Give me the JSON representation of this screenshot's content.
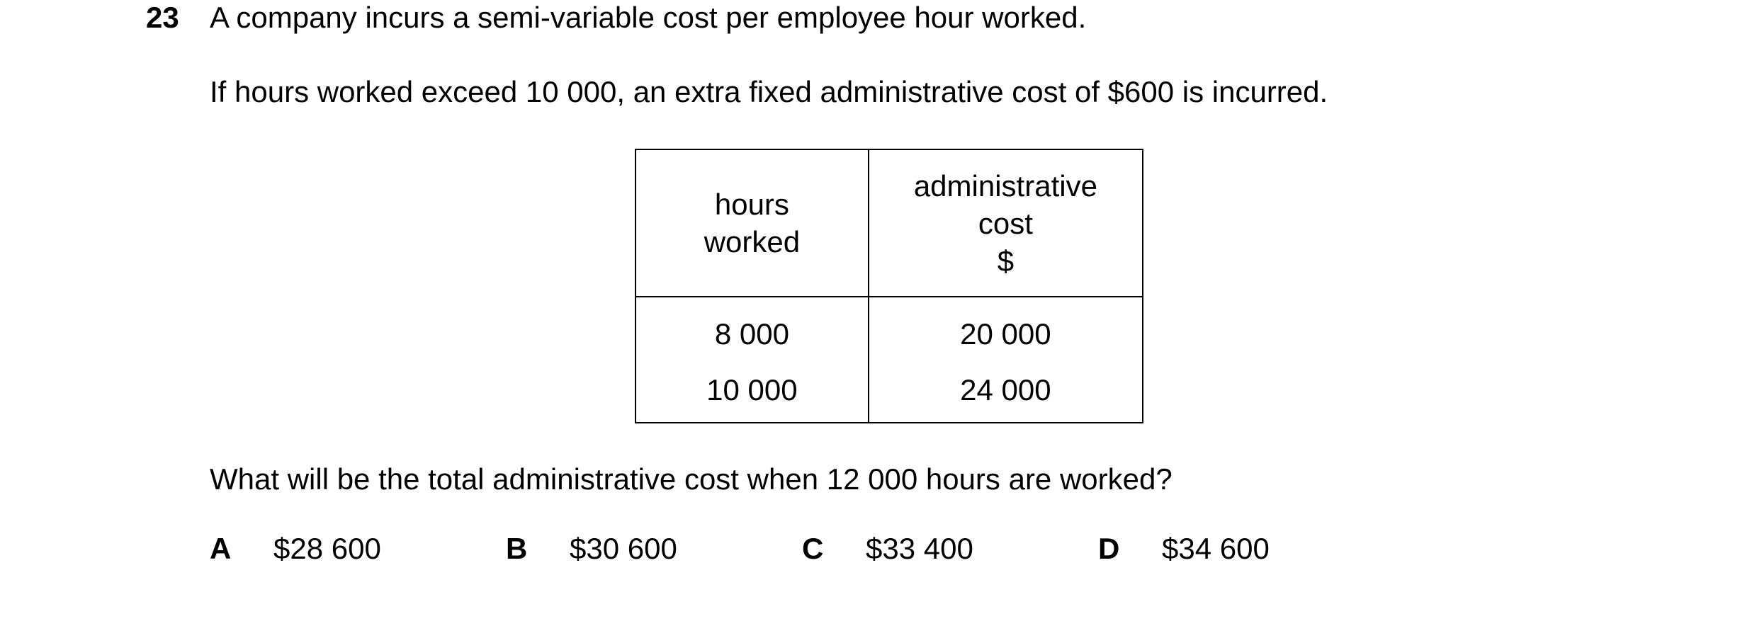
{
  "question": {
    "number": "23",
    "stem_line_1": "A company incurs a semi-variable cost per employee hour worked.",
    "stem_line_2": "If hours worked exceed 10 000, an extra fixed administrative cost of $600 is incurred.",
    "prompt": "What will be the total administrative cost when 12 000 hours are worked?"
  },
  "table": {
    "headers": {
      "hours": [
        "hours",
        "worked"
      ],
      "cost": [
        "administrative",
        "cost",
        "$"
      ]
    },
    "rows": [
      {
        "hours": "8 000",
        "cost": "20 000"
      },
      {
        "hours": "10 000",
        "cost": "24 000"
      }
    ]
  },
  "options": [
    {
      "letter": "A",
      "value": "$28 600"
    },
    {
      "letter": "B",
      "value": "$30 600"
    },
    {
      "letter": "C",
      "value": "$33 400"
    },
    {
      "letter": "D",
      "value": "$34 600"
    }
  ]
}
